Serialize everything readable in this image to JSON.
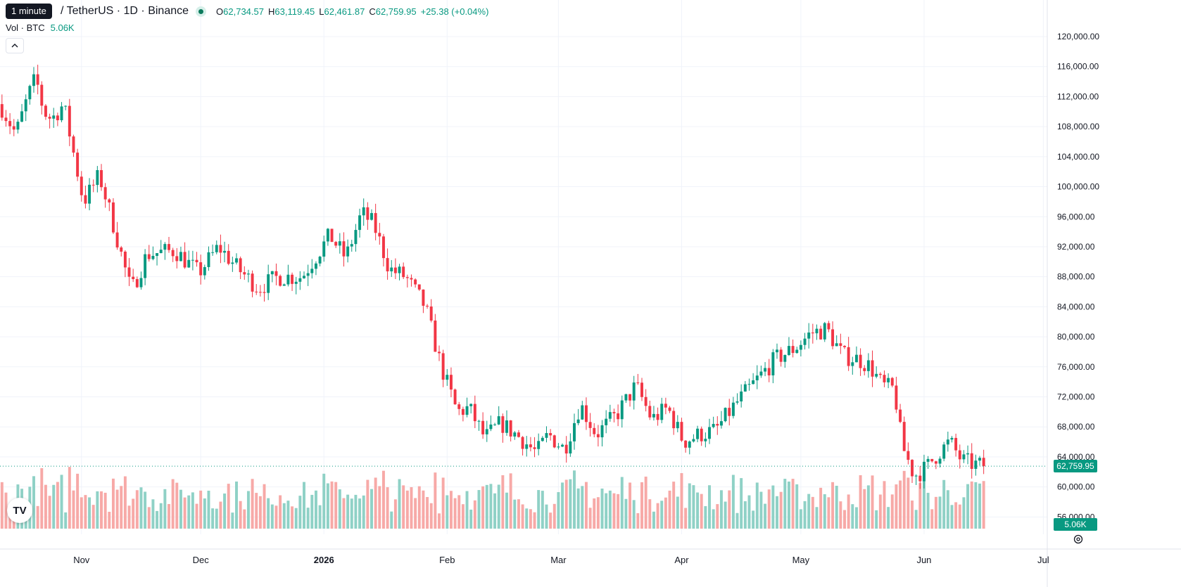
{
  "tooltip": "1 minute",
  "symbol": "/ TetherUS · 1D · Binance",
  "ohlc": [
    {
      "key": "O",
      "value": "62,734.57"
    },
    {
      "key": "H",
      "value": "63,119.45"
    },
    {
      "key": "L",
      "value": "62,461.87"
    },
    {
      "key": "C",
      "value": "62,759.95"
    }
  ],
  "change": "+25.38 (+0.04%)",
  "volume": {
    "label": "Vol · BTC",
    "value": "5.06K"
  },
  "collapse_icon": "chevron-up-icon",
  "logo_text": "TV",
  "settings_icon": "gear-icon",
  "colors": {
    "up": "#089981",
    "down": "#f23645",
    "up_vol": "#8fd1c6",
    "down_vol": "#f7a9a7",
    "grid": "#f0f3fa"
  },
  "chart_data": {
    "type": "candlestick",
    "y_axis_ticks": [
      "120,000.00",
      "116,000.00",
      "112,000.00",
      "108,000.00",
      "104,000.00",
      "100,000.00",
      "96,000.00",
      "92,000.00",
      "88,000.00",
      "84,000.00",
      "80,000.00",
      "76,000.00",
      "72,000.00",
      "68,000.00",
      "64,000.00",
      "60,000.00",
      "56,000.00"
    ],
    "y_range": [
      55000,
      121500
    ],
    "x_axis_ticks": [
      {
        "label": "Nov",
        "day": 30
      },
      {
        "label": "Dec",
        "day": 60
      },
      {
        "label": "2026",
        "day": 91
      },
      {
        "label": "Feb",
        "day": 122
      },
      {
        "label": "Mar",
        "day": 150
      },
      {
        "label": "Apr",
        "day": 181
      },
      {
        "label": "May",
        "day": 211
      },
      {
        "label": "Jun",
        "day": 242
      },
      {
        "label": "Jul",
        "day": 272
      }
    ],
    "x_range": [
      9.5,
      273
    ],
    "last_price": 62759.95,
    "last_price_label": "62,759.95",
    "last_volume_label": "5.06K",
    "anchors": [
      [
        10,
        111000
      ],
      [
        14,
        107000
      ],
      [
        17,
        112000
      ],
      [
        19,
        114500
      ],
      [
        21,
        110000
      ],
      [
        23,
        109000
      ],
      [
        26,
        111000
      ],
      [
        31,
        98000
      ],
      [
        35,
        101500
      ],
      [
        38,
        96000
      ],
      [
        40,
        92000
      ],
      [
        43,
        86000
      ],
      [
        47,
        91000
      ],
      [
        54,
        91500
      ],
      [
        60,
        88500
      ],
      [
        65,
        92000
      ],
      [
        70,
        89000
      ],
      [
        75,
        86500
      ],
      [
        80,
        88000
      ],
      [
        86,
        88000
      ],
      [
        93,
        93500
      ],
      [
        97,
        90500
      ],
      [
        101,
        96500
      ],
      [
        104,
        95000
      ],
      [
        108,
        89000
      ],
      [
        112,
        88000
      ],
      [
        117,
        84000
      ],
      [
        121,
        76000
      ],
      [
        125,
        70000
      ],
      [
        128,
        70500
      ],
      [
        132,
        66500
      ],
      [
        136,
        68500
      ],
      [
        141,
        66500
      ],
      [
        145,
        64500
      ],
      [
        148,
        67000
      ],
      [
        152,
        65000
      ],
      [
        156,
        71000
      ],
      [
        160,
        67000
      ],
      [
        165,
        69500
      ],
      [
        170,
        73500
      ],
      [
        174,
        69000
      ],
      [
        178,
        70500
      ],
      [
        182,
        66000
      ],
      [
        186,
        67000
      ],
      [
        190,
        67500
      ],
      [
        195,
        71000
      ],
      [
        200,
        74000
      ],
      [
        205,
        77000
      ],
      [
        210,
        78500
      ],
      [
        214,
        80500
      ],
      [
        218,
        81000
      ],
      [
        222,
        77500
      ],
      [
        226,
        77000
      ],
      [
        229,
        76000
      ],
      [
        232,
        73500
      ],
      [
        235,
        73000
      ],
      [
        237,
        65500
      ],
      [
        240,
        61500
      ],
      [
        243,
        62500
      ],
      [
        246,
        64500
      ],
      [
        249,
        66000
      ],
      [
        252,
        63500
      ],
      [
        255,
        63000
      ],
      [
        257,
        62800
      ]
    ]
  }
}
